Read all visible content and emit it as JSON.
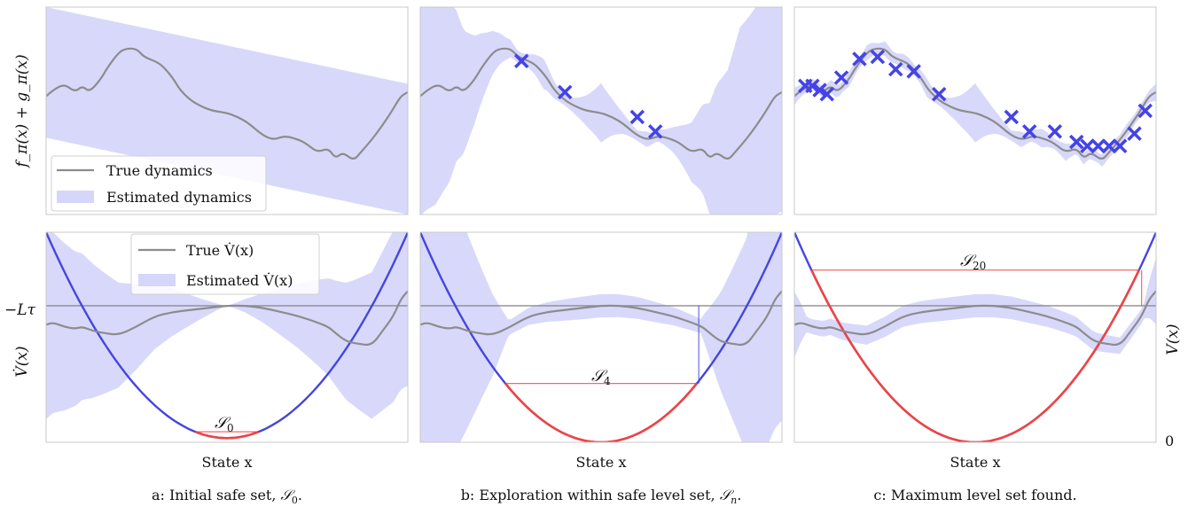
{
  "figure": {
    "captions": [
      {
        "prefix": "a: Initial safe set, ",
        "symbol": "𝒮",
        "sub": "0",
        "suffix": "."
      },
      {
        "prefix": "b: Exploration within safe level set, ",
        "symbol": "𝒮",
        "sub": "n",
        "suffix": "."
      },
      {
        "prefix": "c: Maximum level set found.",
        "symbol": "",
        "sub": "",
        "suffix": ""
      }
    ],
    "top_ylabel": "f_π(x) + g_π(x)",
    "bottom_ylabel": "V̇(x)",
    "right_ylabel": "V(x)",
    "xlabel": "State x",
    "neg_l_tau_label": "−Lτ",
    "zero_label": "0",
    "colors": {
      "true_line": "#8c8c8c",
      "band": "#d6d6fb",
      "samples": "#4444e6",
      "lyapunov": "#4545e0",
      "safe": "#ee4444",
      "axis": "#c8c8c8"
    }
  },
  "legends": {
    "top": {
      "true_label": "True dynamics",
      "est_label": "Estimated dynamics"
    },
    "bottom": {
      "true_label": "True V̇(x)",
      "est_label": "Estimated V̇(x)"
    }
  },
  "chart_data": [
    {
      "type": "line",
      "panel": "a-top",
      "xlim": [
        0,
        1
      ],
      "ylim": [
        0,
        1
      ],
      "series": [
        {
          "name": "True dynamics",
          "x": [
            0,
            0.02,
            0.05,
            0.08,
            0.1,
            0.12,
            0.15,
            0.17,
            0.2,
            0.22,
            0.25,
            0.27,
            0.3,
            0.32,
            0.35,
            0.37,
            0.4,
            0.43,
            0.46,
            0.5,
            0.53,
            0.56,
            0.6,
            0.63,
            0.66,
            0.7,
            0.72,
            0.75,
            0.78,
            0.8,
            0.82,
            0.85,
            0.87,
            0.9,
            0.93,
            0.96,
            0.98,
            1.0
          ],
          "y": [
            0.57,
            0.6,
            0.63,
            0.59,
            0.62,
            0.59,
            0.65,
            0.71,
            0.78,
            0.8,
            0.8,
            0.76,
            0.74,
            0.72,
            0.66,
            0.6,
            0.55,
            0.52,
            0.5,
            0.49,
            0.47,
            0.44,
            0.38,
            0.36,
            0.38,
            0.36,
            0.34,
            0.3,
            0.32,
            0.27,
            0.3,
            0.26,
            0.3,
            0.36,
            0.43,
            0.51,
            0.57,
            0.59
          ]
        }
      ],
      "band": {
        "type": "linear",
        "center_x": 0.5,
        "center_y": 0.5,
        "left_lo": 0.37,
        "left_hi": 1.0,
        "right_lo": 0.0,
        "right_hi": 0.63
      },
      "samples": []
    },
    {
      "type": "line",
      "panel": "b-top",
      "xlim": [
        0,
        1
      ],
      "ylim": [
        0,
        1
      ],
      "series": [
        {
          "name": "True dynamics",
          "x": [
            0,
            0.02,
            0.05,
            0.08,
            0.1,
            0.12,
            0.15,
            0.17,
            0.2,
            0.22,
            0.25,
            0.27,
            0.3,
            0.32,
            0.35,
            0.37,
            0.4,
            0.43,
            0.46,
            0.5,
            0.53,
            0.56,
            0.6,
            0.63,
            0.66,
            0.7,
            0.72,
            0.75,
            0.78,
            0.8,
            0.82,
            0.85,
            0.87,
            0.9,
            0.93,
            0.96,
            0.98,
            1.0
          ],
          "y": [
            0.57,
            0.6,
            0.63,
            0.59,
            0.62,
            0.59,
            0.65,
            0.71,
            0.78,
            0.8,
            0.8,
            0.76,
            0.74,
            0.72,
            0.66,
            0.6,
            0.55,
            0.52,
            0.5,
            0.49,
            0.47,
            0.44,
            0.38,
            0.36,
            0.38,
            0.36,
            0.34,
            0.3,
            0.32,
            0.27,
            0.3,
            0.26,
            0.3,
            0.36,
            0.43,
            0.51,
            0.57,
            0.59
          ]
        }
      ],
      "band": {
        "type": "samples"
      },
      "samples": [
        {
          "x": 0.28,
          "y": 0.74
        },
        {
          "x": 0.4,
          "y": 0.59
        },
        {
          "x": 0.6,
          "y": 0.47
        },
        {
          "x": 0.65,
          "y": 0.4
        }
      ]
    },
    {
      "type": "line",
      "panel": "c-top",
      "xlim": [
        0,
        1
      ],
      "ylim": [
        0,
        1
      ],
      "series": [
        {
          "name": "True dynamics",
          "x": [
            0,
            0.02,
            0.05,
            0.08,
            0.1,
            0.12,
            0.15,
            0.17,
            0.2,
            0.22,
            0.25,
            0.27,
            0.3,
            0.32,
            0.35,
            0.37,
            0.4,
            0.43,
            0.46,
            0.5,
            0.53,
            0.56,
            0.6,
            0.63,
            0.66,
            0.7,
            0.72,
            0.75,
            0.78,
            0.8,
            0.82,
            0.85,
            0.87,
            0.9,
            0.93,
            0.96,
            0.98,
            1.0
          ],
          "y": [
            0.57,
            0.6,
            0.63,
            0.59,
            0.62,
            0.59,
            0.65,
            0.71,
            0.78,
            0.8,
            0.8,
            0.76,
            0.74,
            0.72,
            0.66,
            0.6,
            0.55,
            0.52,
            0.5,
            0.49,
            0.47,
            0.44,
            0.38,
            0.36,
            0.38,
            0.36,
            0.34,
            0.3,
            0.32,
            0.27,
            0.3,
            0.26,
            0.3,
            0.36,
            0.43,
            0.51,
            0.57,
            0.59
          ]
        }
      ],
      "band": {
        "type": "samples"
      },
      "samples": [
        {
          "x": 0.03,
          "y": 0.62
        },
        {
          "x": 0.05,
          "y": 0.62
        },
        {
          "x": 0.07,
          "y": 0.6
        },
        {
          "x": 0.09,
          "y": 0.58
        },
        {
          "x": 0.13,
          "y": 0.66
        },
        {
          "x": 0.18,
          "y": 0.75
        },
        {
          "x": 0.23,
          "y": 0.76
        },
        {
          "x": 0.28,
          "y": 0.7
        },
        {
          "x": 0.33,
          "y": 0.69
        },
        {
          "x": 0.4,
          "y": 0.58
        },
        {
          "x": 0.6,
          "y": 0.47
        },
        {
          "x": 0.65,
          "y": 0.4
        },
        {
          "x": 0.72,
          "y": 0.4
        },
        {
          "x": 0.78,
          "y": 0.35
        },
        {
          "x": 0.81,
          "y": 0.33
        },
        {
          "x": 0.84,
          "y": 0.33
        },
        {
          "x": 0.87,
          "y": 0.33
        },
        {
          "x": 0.9,
          "y": 0.33
        },
        {
          "x": 0.94,
          "y": 0.39
        },
        {
          "x": 0.97,
          "y": 0.5
        }
      ]
    },
    {
      "type": "line",
      "panel": "a-bottom",
      "xlim": [
        0,
        1
      ],
      "ylim": [
        0,
        1
      ],
      "neg_l_tau": 0.65,
      "lyapunov": {
        "vertex_x": 0.5,
        "vertex_y": 0.02,
        "edge_y": 1.0
      },
      "safe_level": 0.05,
      "vline_x": null,
      "band": {
        "type": "hourglass",
        "max_half": 0.45,
        "min_half": 0.0
      },
      "series": [
        {
          "name": "True V̇(x)",
          "x": [
            0,
            0.02,
            0.05,
            0.08,
            0.1,
            0.13,
            0.16,
            0.2,
            0.25,
            0.3,
            0.35,
            0.4,
            0.45,
            0.5,
            0.55,
            0.6,
            0.65,
            0.7,
            0.75,
            0.78,
            0.8,
            0.83,
            0.86,
            0.9,
            0.93,
            0.96,
            0.98,
            1.0
          ],
          "y": [
            0.56,
            0.57,
            0.55,
            0.54,
            0.55,
            0.53,
            0.52,
            0.51,
            0.55,
            0.6,
            0.62,
            0.63,
            0.64,
            0.65,
            0.65,
            0.64,
            0.62,
            0.6,
            0.57,
            0.55,
            0.52,
            0.48,
            0.47,
            0.46,
            0.53,
            0.6,
            0.68,
            0.72
          ]
        }
      ]
    },
    {
      "type": "line",
      "panel": "b-bottom",
      "xlim": [
        0,
        1
      ],
      "ylim": [
        0,
        1
      ],
      "neg_l_tau": 0.65,
      "lyapunov": {
        "vertex_x": 0.5,
        "vertex_y": 0.0,
        "edge_y": 1.0
      },
      "safe_level": 0.28,
      "vline_x": 0.77,
      "band": {
        "type": "samples_range",
        "lo": 0.25,
        "hi": 0.77
      },
      "series": [
        {
          "name": "True V̇(x)",
          "x": [
            0,
            0.02,
            0.05,
            0.08,
            0.1,
            0.13,
            0.16,
            0.2,
            0.25,
            0.3,
            0.35,
            0.4,
            0.45,
            0.5,
            0.55,
            0.6,
            0.65,
            0.7,
            0.75,
            0.78,
            0.8,
            0.83,
            0.86,
            0.9,
            0.93,
            0.96,
            0.98,
            1.0
          ],
          "y": [
            0.56,
            0.57,
            0.55,
            0.54,
            0.55,
            0.53,
            0.52,
            0.51,
            0.55,
            0.6,
            0.62,
            0.63,
            0.64,
            0.65,
            0.65,
            0.64,
            0.62,
            0.6,
            0.57,
            0.55,
            0.52,
            0.48,
            0.47,
            0.46,
            0.53,
            0.6,
            0.68,
            0.72
          ]
        }
      ]
    },
    {
      "type": "line",
      "panel": "c-bottom",
      "xlim": [
        0,
        1
      ],
      "ylim": [
        0,
        1
      ],
      "neg_l_tau": 0.65,
      "lyapunov": {
        "vertex_x": 0.5,
        "vertex_y": 0.0,
        "edge_y": 1.0
      },
      "safe_level": 0.82,
      "vline_x": 0.96,
      "band": {
        "type": "samples_range",
        "lo": 0.04,
        "hi": 0.96
      },
      "series": [
        {
          "name": "True V̇(x)",
          "x": [
            0,
            0.02,
            0.05,
            0.08,
            0.1,
            0.13,
            0.16,
            0.2,
            0.25,
            0.3,
            0.35,
            0.4,
            0.45,
            0.5,
            0.55,
            0.6,
            0.65,
            0.7,
            0.75,
            0.78,
            0.8,
            0.83,
            0.86,
            0.9,
            0.93,
            0.96,
            0.98,
            1.0
          ],
          "y": [
            0.56,
            0.57,
            0.55,
            0.54,
            0.55,
            0.53,
            0.52,
            0.51,
            0.55,
            0.6,
            0.62,
            0.63,
            0.64,
            0.65,
            0.65,
            0.64,
            0.62,
            0.6,
            0.57,
            0.55,
            0.52,
            0.48,
            0.47,
            0.46,
            0.53,
            0.6,
            0.68,
            0.72
          ]
        }
      ]
    }
  ],
  "safe_set_labels": {
    "a": {
      "symbol": "𝒮",
      "sub": "0"
    },
    "b": {
      "symbol": "𝒮",
      "sub": "4"
    },
    "c": {
      "symbol": "𝒮",
      "sub": "20"
    }
  }
}
